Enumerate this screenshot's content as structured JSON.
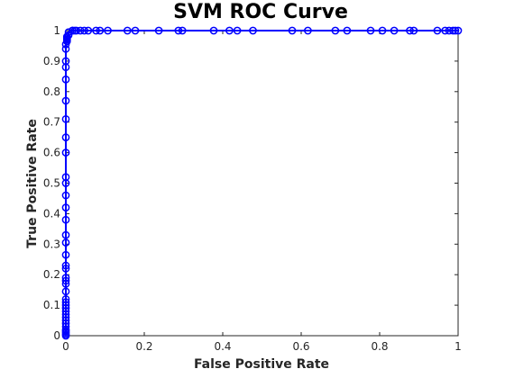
{
  "chart_data": {
    "type": "line",
    "title": "SVM ROC Curve",
    "xlabel": "False Positive Rate",
    "ylabel": "True Positive Rate",
    "xlim": [
      0,
      1
    ],
    "ylim": [
      0,
      1
    ],
    "xticks": [
      0,
      0.2,
      0.4,
      0.6,
      0.8,
      1
    ],
    "xtick_labels": [
      "0",
      "0.2",
      "0.4",
      "0.6",
      "0.8",
      "1"
    ],
    "yticks": [
      0,
      0.1,
      0.2,
      0.3,
      0.4,
      0.5,
      0.6,
      0.7,
      0.8,
      0.9,
      1
    ],
    "ytick_labels": [
      "0",
      "0.1",
      "0.2",
      "0.3",
      "0.4",
      "0.5",
      "0.6",
      "0.7",
      "0.8",
      "0.9",
      "1"
    ],
    "grid": false,
    "legend": "none",
    "marker": "circle",
    "series_color": "#0000ff",
    "axis_color": "#262626",
    "series": [
      {
        "x": [
          0,
          0,
          0,
          0,
          0,
          0,
          0,
          0,
          0,
          0,
          0,
          0,
          0,
          0,
          0,
          0,
          0,
          0,
          0,
          0,
          0,
          0,
          0,
          0,
          0,
          0,
          0,
          0,
          0,
          0,
          0,
          0,
          0,
          0,
          0,
          0,
          0,
          0,
          0.003,
          0.003,
          0.003,
          0.003,
          0.003,
          0.003,
          0.007,
          0.007,
          0.017,
          0.017,
          0.023,
          0.027,
          0.037,
          0.047,
          0.057,
          0.077,
          0.087,
          0.107,
          0.157,
          0.177,
          0.237,
          0.287,
          0.297,
          0.377,
          0.417,
          0.437,
          0.477,
          0.577,
          0.617,
          0.687,
          0.717,
          0.777,
          0.807,
          0.837,
          0.877,
          0.887,
          0.947,
          0.967,
          0.977,
          0.987,
          0.993,
          1
        ],
        "y": [
          0,
          0.005,
          0.01,
          0.015,
          0.02,
          0.03,
          0.04,
          0.05,
          0.06,
          0.07,
          0.08,
          0.09,
          0.1,
          0.11,
          0.12,
          0.145,
          0.17,
          0.18,
          0.19,
          0.22,
          0.23,
          0.265,
          0.305,
          0.33,
          0.38,
          0.42,
          0.46,
          0.5,
          0.52,
          0.6,
          0.65,
          0.71,
          0.77,
          0.84,
          0.88,
          0.9,
          0.94,
          0.955,
          0.965,
          0.97,
          0.97,
          0.975,
          0.98,
          0.98,
          0.985,
          0.995,
          1,
          1,
          1,
          1,
          1,
          1,
          1,
          1,
          1,
          1,
          1,
          1,
          1,
          1,
          1,
          1,
          1,
          1,
          1,
          1,
          1,
          1,
          1,
          1,
          1,
          1,
          1,
          1,
          1,
          1,
          1,
          1,
          1,
          1
        ]
      }
    ]
  }
}
